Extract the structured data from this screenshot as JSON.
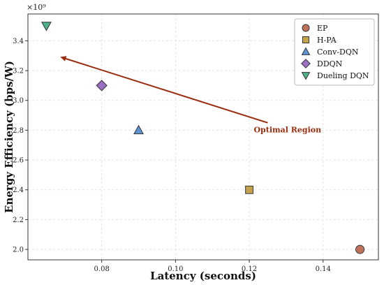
{
  "chart_data": {
    "type": "scatter",
    "title": "",
    "xlabel": "Latency (seconds)",
    "ylabel": "Energy Efficiency (bps/W)",
    "y_multiplier_label": "×10⁹",
    "xlim": [
      0.06,
      0.155
    ],
    "ylim": [
      1.93,
      3.58
    ],
    "x_ticks": [
      {
        "value": 0.08,
        "label": "0.08"
      },
      {
        "value": 0.1,
        "label": "0.10"
      },
      {
        "value": 0.12,
        "label": "0.12"
      },
      {
        "value": 0.14,
        "label": "0.14"
      }
    ],
    "y_ticks": [
      {
        "value": 2.0,
        "label": "2.0"
      },
      {
        "value": 2.2,
        "label": "2.2"
      },
      {
        "value": 2.4,
        "label": "2.4"
      },
      {
        "value": 2.6,
        "label": "2.6"
      },
      {
        "value": 2.8,
        "label": "2.8"
      },
      {
        "value": 3.0,
        "label": "3.0"
      },
      {
        "value": 3.2,
        "label": "3.2"
      },
      {
        "value": 3.4,
        "label": "3.4"
      }
    ],
    "grid": true,
    "legend_position": "top-right",
    "series": [
      {
        "name": "EP",
        "marker": "circle",
        "color": "#c0735a",
        "x": [
          0.15
        ],
        "y": [
          2.0
        ]
      },
      {
        "name": "H-PA",
        "marker": "square",
        "color": "#c4a24e",
        "x": [
          0.12
        ],
        "y": [
          2.4
        ]
      },
      {
        "name": "Conv-DQN",
        "marker": "triangle-up",
        "color": "#5d93d4",
        "x": [
          0.09
        ],
        "y": [
          2.8
        ]
      },
      {
        "name": "DDQN",
        "marker": "diamond",
        "color": "#9a6fc4",
        "x": [
          0.08
        ],
        "y": [
          3.1
        ]
      },
      {
        "name": "Dueling DQN",
        "marker": "triangle-down",
        "color": "#4fb389",
        "x": [
          0.065
        ],
        "y": [
          3.5
        ]
      }
    ],
    "annotation": {
      "text": "Optimal Region",
      "color": "#9b2d0f",
      "arrow_from": {
        "x": 0.125,
        "y": 2.85
      },
      "arrow_to": {
        "x": 0.069,
        "y": 3.29
      }
    }
  }
}
